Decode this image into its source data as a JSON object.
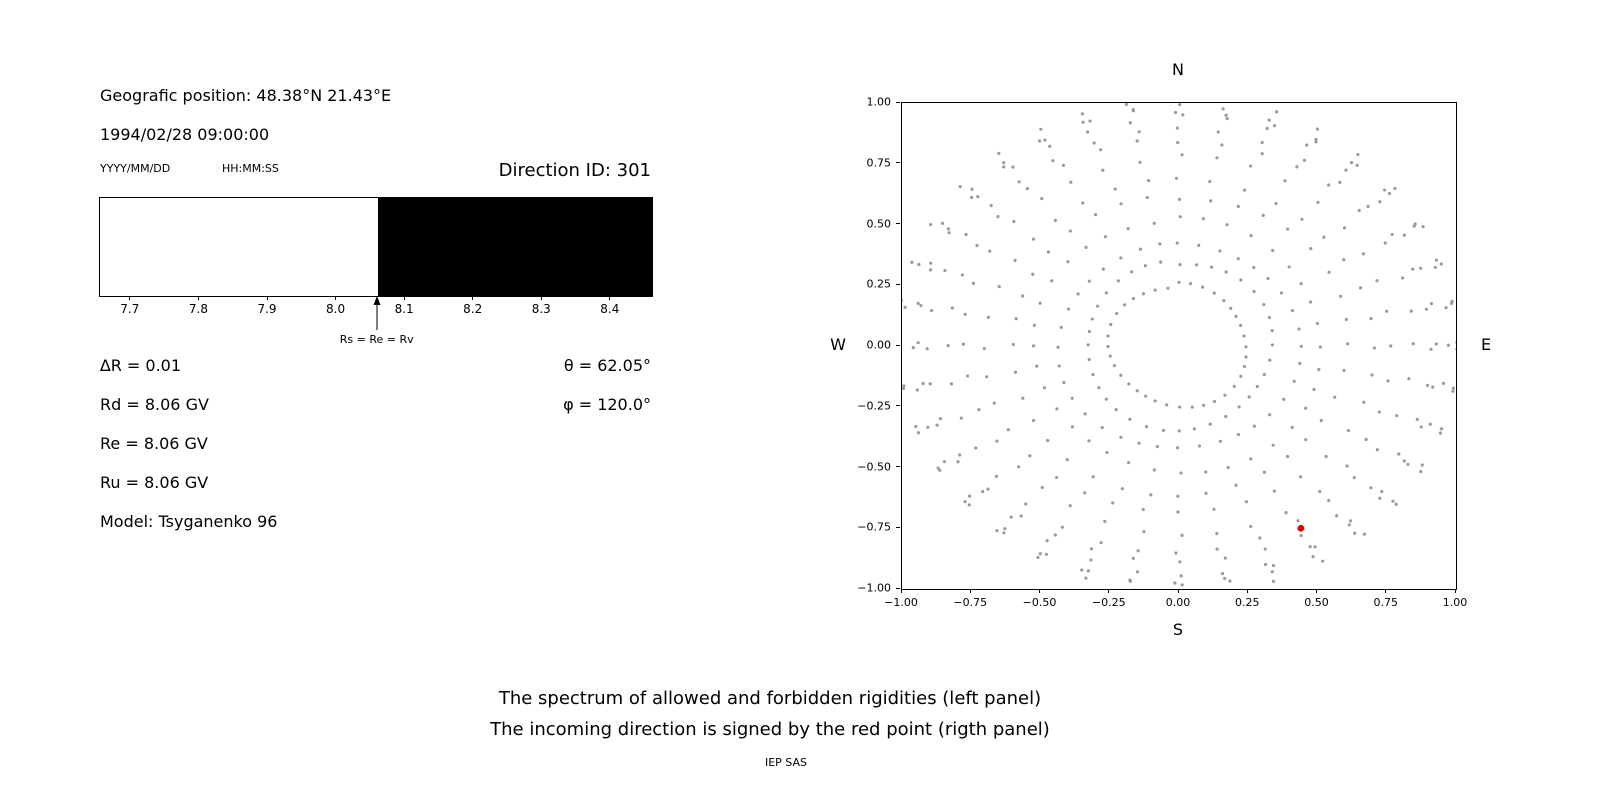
{
  "figure": {
    "background": "#ffffff",
    "caption_line1": "The spectrum of allowed and forbidden rigidities (left panel)",
    "caption_line2": "The incoming direction is signed by the red point (rigth panel)",
    "credit": "IEP SAS"
  },
  "left_panel": {
    "geo_position": "Geografic position: 48.38°N 21.43°E",
    "datetime": "1994/02/28 09:00:00",
    "date_format_label": "YYYY/MM/DD",
    "time_format_label": "HH:MM:SS",
    "direction_id_label": "Direction ID: 301",
    "params_left": [
      "∆R = 0.01",
      "Rd = 8.06 GV",
      "Re = 8.06 GV",
      "Ru = 8.06 GV",
      "Model: Tsyganenko 96"
    ],
    "params_right": [
      "θ = 62.05°",
      "φ = 120.0°"
    ]
  },
  "chart_data": [
    {
      "type": "bar",
      "panel": "left",
      "description": "Rigidity spectrum bar: white region = allowed rigidities, black region = forbidden rigidities",
      "x_range": [
        7.655,
        8.46
      ],
      "x_tick_values": [
        7.7,
        7.8,
        7.9,
        8.0,
        8.1,
        8.2,
        8.3,
        8.4
      ],
      "x_tick_labels": [
        "7.7",
        "7.8",
        "7.9",
        "8.0",
        "8.1",
        "8.2",
        "8.3",
        "8.4"
      ],
      "cutoff_rigidity_gv": 8.06,
      "allowed_color": "#ffffff",
      "forbidden_color": "#000000",
      "arrow": {
        "x": 8.06,
        "label": "Rs = Re = Rv"
      },
      "values": {
        "delta_R": 0.01,
        "Rd_GV": 8.06,
        "Re_GV": 8.06,
        "Ru_GV": 8.06,
        "theta_deg": 62.05,
        "phi_deg": 120.0,
        "model": "Tsyganenko 96",
        "direction_id": 301
      }
    },
    {
      "type": "scatter",
      "panel": "right",
      "description": "Direction grid of gray dots in radial spokes; red point marks the incoming direction",
      "xlim": [
        -1,
        1
      ],
      "ylim": [
        -1,
        1
      ],
      "x_tick_values": [
        -1,
        -0.75,
        -0.5,
        -0.25,
        0,
        0.25,
        0.5,
        0.75,
        1
      ],
      "x_tick_labels": [
        "−1.00",
        "−0.75",
        "−0.50",
        "−0.25",
        "0.00",
        "0.25",
        "0.50",
        "0.75",
        "1.00"
      ],
      "y_tick_values": [
        1,
        0.75,
        0.5,
        0.25,
        0,
        -0.25,
        -0.5,
        -0.75,
        -1
      ],
      "y_tick_labels": [
        "1.00",
        "0.75",
        "0.50",
        "0.25",
        "0.00",
        "−0.25",
        "−0.50",
        "−0.75",
        "−1.00"
      ],
      "compass": {
        "north": "N",
        "south": "S",
        "east": "E",
        "west": "W"
      },
      "dot_grid": {
        "color": "#9a9a9a",
        "azimuth_count": 36,
        "radii": [
          0.25,
          0.34,
          0.43,
          0.52,
          0.61,
          0.695,
          0.775,
          0.845,
          0.9,
          0.94,
          0.97,
          0.995,
          1.015
        ],
        "jitter": 0.012,
        "dot_radius_px": 1.6
      },
      "red_point": {
        "x": 0.44,
        "y": -0.75,
        "color": "#e60000",
        "radius_px": 3.4
      }
    }
  ]
}
